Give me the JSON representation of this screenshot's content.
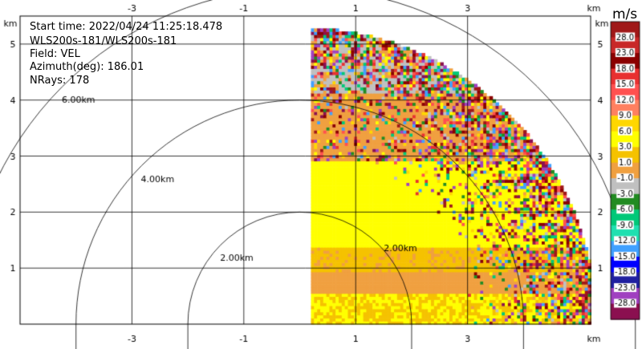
{
  "info": {
    "start_time": "Start time: 2022/04/24 11:25:18.478",
    "station": "WLS200s-181/WLS200s-181",
    "field": "Field: VEL",
    "azimuth": "Azimuth(deg): 186.01",
    "nrays": "NRays: 178"
  },
  "axes": {
    "x_unit": "km",
    "y_unit": "km",
    "x_ticks": [
      "-3",
      "-1",
      "1",
      "3"
    ],
    "x_tick_values": [
      -3,
      -1,
      1,
      3
    ],
    "y_ticks": [
      "1",
      "2",
      "3",
      "4",
      "5"
    ],
    "y_tick_values": [
      1,
      2,
      3,
      4,
      5
    ],
    "xlim": [
      -5.0,
      5.2
    ],
    "ylim": [
      0,
      5.5
    ],
    "grid": true
  },
  "range_rings": [
    {
      "radius": 2.0,
      "label": "2.00km"
    },
    {
      "radius": 4.0,
      "label": "4.00km"
    },
    {
      "radius": 6.0,
      "label": "6.00km"
    }
  ],
  "colorbar": {
    "unit": "m/s",
    "ticks": [
      "28.0",
      "23.0",
      "18.0",
      "15.0",
      "12.0",
      "9.0",
      "6.0",
      "3.0",
      "1.0",
      "-1.0",
      "-3.0",
      "-6.0",
      "-9.0",
      "-12.0",
      "-15.0",
      "-18.0",
      "-23.0",
      "-28.0"
    ],
    "colors": [
      "#a01818",
      "#c82828",
      "#8b0000",
      "#e83030",
      "#ff5050",
      "#ff8060",
      "#ffd700",
      "#ffff00",
      "#f5c200",
      "#f0a040",
      "#c0c0c0",
      "#228b22",
      "#00c878",
      "#20e0b0",
      "#40a0ff",
      "#0000ff",
      "#2020a0",
      "#a040c0",
      "#8b1050"
    ]
  },
  "chart_data": {
    "type": "heatmap",
    "field": "VEL",
    "units": "m/s",
    "azimuth_deg": 186.01,
    "nrays": 178,
    "max_range_km": 5.3,
    "x_start_km": 0.2,
    "bands": [
      {
        "y_range": [
          0.0,
          0.55
        ],
        "velocity": 3.0
      },
      {
        "y_range": [
          0.55,
          0.9
        ],
        "velocity": 0.0
      },
      {
        "y_range": [
          0.9,
          1.35
        ],
        "velocity": 1.5
      },
      {
        "y_range": [
          1.35,
          2.9
        ],
        "velocity": 4.5
      },
      {
        "y_range": [
          2.9,
          3.3
        ],
        "velocity": 0.0
      },
      {
        "y_range": [
          3.3,
          4.1
        ],
        "velocity": 0.0
      },
      {
        "y_range": [
          4.1,
          5.3
        ],
        "velocity": -1.5
      }
    ],
    "noise_begins_km": 3.0
  }
}
